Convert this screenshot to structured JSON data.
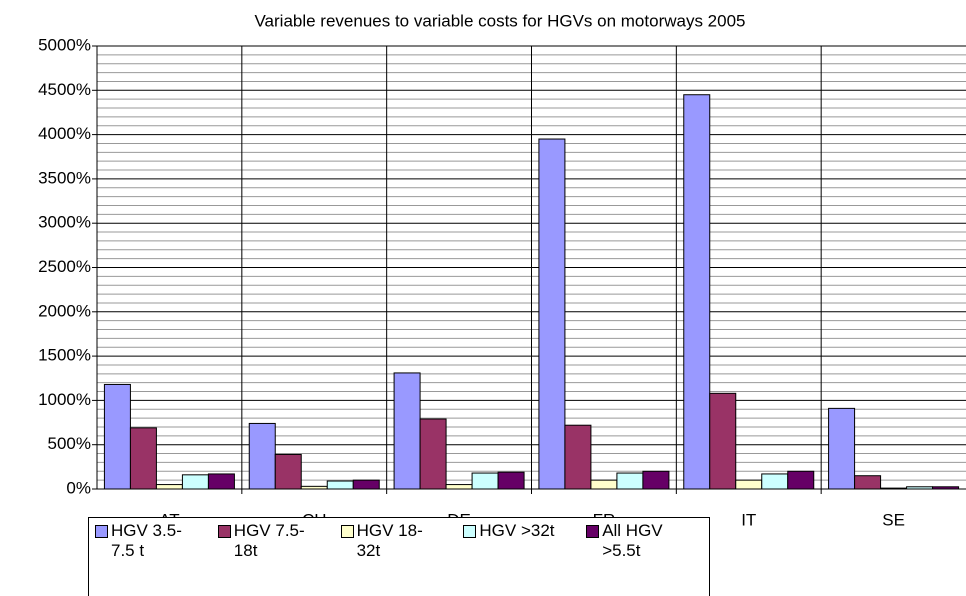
{
  "chart_data": {
    "type": "bar",
    "title": "Variable revenues to variable costs for HGVs on motorways 2005",
    "categories": [
      "AT",
      "CH",
      "DE",
      "FR",
      "IT",
      "SE"
    ],
    "series": [
      {
        "name": "HGV 3.5-7.5 t",
        "color": "#9999ff",
        "values": [
          1180,
          740,
          1310,
          3950,
          4450,
          910
        ]
      },
      {
        "name": "HGV 7.5-18t",
        "color": "#993366",
        "values": [
          690,
          390,
          790,
          720,
          1080,
          150
        ]
      },
      {
        "name": "HGV 18-32t",
        "color": "#ffffcc",
        "values": [
          50,
          30,
          50,
          100,
          100,
          10
        ]
      },
      {
        "name": "HGV >32t",
        "color": "#ccffff",
        "values": [
          160,
          90,
          180,
          180,
          170,
          25
        ]
      },
      {
        "name": "All HGV >5.5t",
        "color": "#660066",
        "values": [
          170,
          100,
          190,
          200,
          200,
          25
        ]
      }
    ],
    "ylim": [
      0,
      5000
    ],
    "yticks": [
      {
        "value": 0,
        "label": "0%"
      },
      {
        "value": 500,
        "label": "500%"
      },
      {
        "value": 1000,
        "label": "1000%"
      },
      {
        "value": 1500,
        "label": "1500%"
      },
      {
        "value": 2000,
        "label": "2000%"
      },
      {
        "value": 2500,
        "label": "2500%"
      },
      {
        "value": 3000,
        "label": "3000%"
      },
      {
        "value": 3500,
        "label": "3500%"
      },
      {
        "value": 4000,
        "label": "4000%"
      },
      {
        "value": 4500,
        "label": "4500%"
      },
      {
        "value": 5000,
        "label": "5000%"
      }
    ],
    "grid": true,
    "legend": "bottom"
  }
}
